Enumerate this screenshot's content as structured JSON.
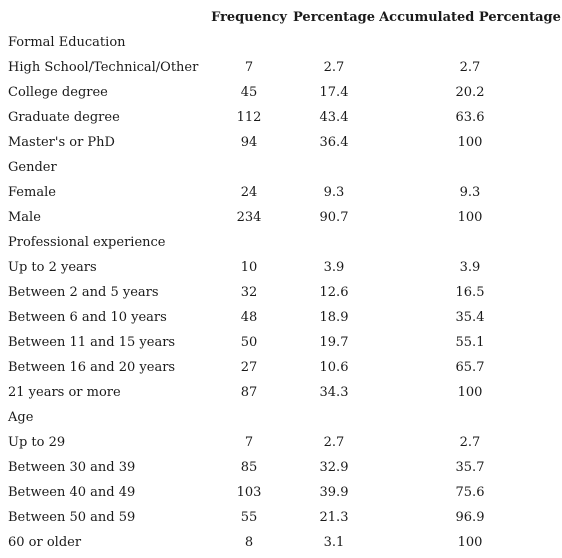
{
  "table": {
    "headers": [
      "",
      "Frequency",
      "Percentage",
      "Accumulated Percentage"
    ],
    "rows": [
      {
        "label": "Formal Education",
        "frequency": "",
        "percentage": "",
        "accumulated": ""
      },
      {
        "label": "High School/Technical/Other",
        "frequency": "7",
        "percentage": "2.7",
        "accumulated": "2.7"
      },
      {
        "label": "College degree",
        "frequency": "45",
        "percentage": "17.4",
        "accumulated": "20.2"
      },
      {
        "label": "Graduate degree",
        "frequency": "112",
        "percentage": "43.4",
        "accumulated": "63.6"
      },
      {
        "label": "Master's or PhD",
        "frequency": "94",
        "percentage": "36.4",
        "accumulated": "100"
      },
      {
        "label": "Gender",
        "frequency": "",
        "percentage": "",
        "accumulated": ""
      },
      {
        "label": "Female",
        "frequency": "24",
        "percentage": "9.3",
        "accumulated": "9.3"
      },
      {
        "label": "Male",
        "frequency": "234",
        "percentage": "90.7",
        "accumulated": "100"
      },
      {
        "label": "Professional experience",
        "frequency": "",
        "percentage": "",
        "accumulated": ""
      },
      {
        "label": "Up to 2 years",
        "frequency": "10",
        "percentage": "3.9",
        "accumulated": "3.9"
      },
      {
        "label": "Between 2 and 5 years",
        "frequency": "32",
        "percentage": "12.6",
        "accumulated": "16.5"
      },
      {
        "label": "Between 6 and 10 years",
        "frequency": "48",
        "percentage": "18.9",
        "accumulated": "35.4"
      },
      {
        "label": "Between 11 and 15 years",
        "frequency": "50",
        "percentage": "19.7",
        "accumulated": "55.1"
      },
      {
        "label": "Between 16 and 20 years",
        "frequency": "27",
        "percentage": "10.6",
        "accumulated": "65.7"
      },
      {
        "label": "21 years or more",
        "frequency": "87",
        "percentage": "34.3",
        "accumulated": "100"
      },
      {
        "label": "Age",
        "frequency": "",
        "percentage": "",
        "accumulated": ""
      },
      {
        "label": "Up to 29",
        "frequency": "7",
        "percentage": "2.7",
        "accumulated": "2.7"
      },
      {
        "label": "Between 30 and 39",
        "frequency": "85",
        "percentage": "32.9",
        "accumulated": "35.7"
      },
      {
        "label": "Between 40 and 49",
        "frequency": "103",
        "percentage": "39.9",
        "accumulated": "75.6"
      },
      {
        "label": "Between 50 and 59",
        "frequency": "55",
        "percentage": "21.3",
        "accumulated": "96.9"
      },
      {
        "label": "60 or older",
        "frequency": "8",
        "percentage": "3.1",
        "accumulated": "100"
      }
    ]
  }
}
